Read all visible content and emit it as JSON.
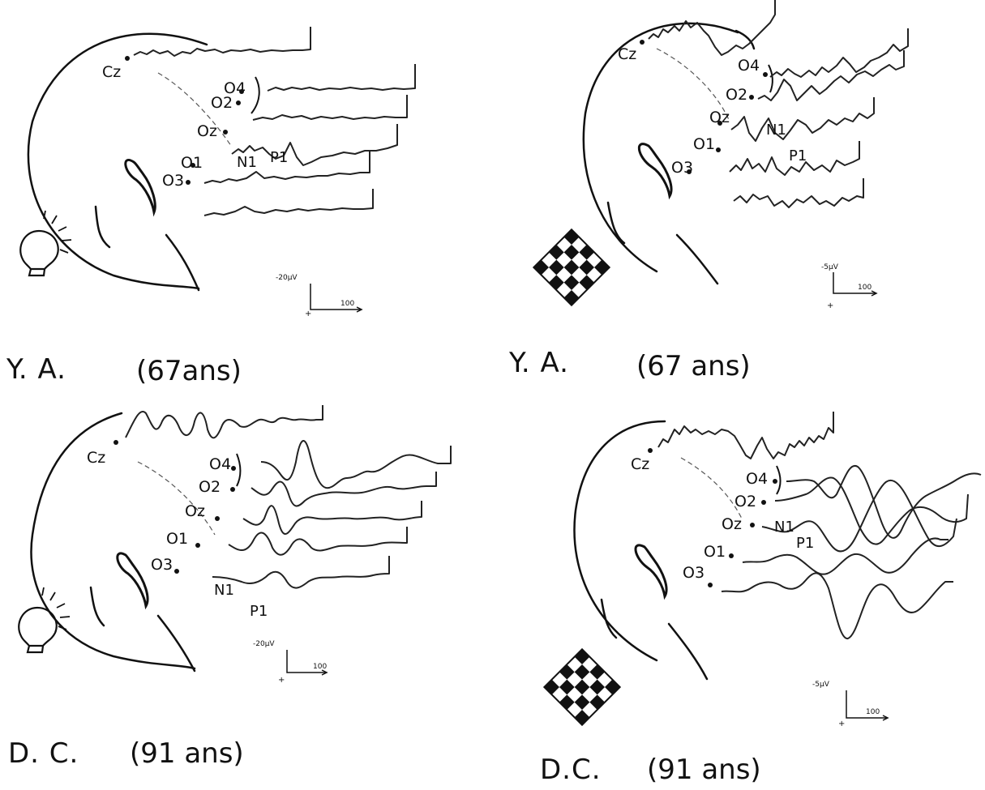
{
  "panels": [
    {
      "id": "tl",
      "stimulus": "flash-bulb",
      "subject": "Y. A.",
      "age": "(67ans)",
      "electrodes": [
        "Cz",
        "O4",
        "O2",
        "Oz",
        "O1",
        "O3"
      ],
      "waves": [
        "N1",
        "P1"
      ],
      "scale": {
        "amp": "-20µV",
        "time": "100"
      }
    },
    {
      "id": "tr",
      "stimulus": "checkerboard",
      "subject": "Y. A.",
      "age": "(67 ans)",
      "electrodes": [
        "Cz",
        "O4",
        "O2",
        "Oz",
        "O1",
        "O3"
      ],
      "waves": [
        "N1",
        "P1"
      ],
      "scale": {
        "amp": "-5µV",
        "time": "100"
      }
    },
    {
      "id": "bl",
      "stimulus": "flash-bulb",
      "subject": "D. C.",
      "age": "(91 ans)",
      "electrodes": [
        "Cz",
        "O4",
        "O2",
        "Oz",
        "O1",
        "O3"
      ],
      "waves": [
        "N1",
        "P1"
      ],
      "scale": {
        "amp": "-20µV",
        "time": "100"
      }
    },
    {
      "id": "br",
      "stimulus": "checkerboard",
      "subject": "D.C.",
      "age": "(91 ans)",
      "electrodes": [
        "Cz",
        "O4",
        "O2",
        "Oz",
        "O1",
        "O3"
      ],
      "waves": [
        "N1",
        "P1"
      ],
      "scale": {
        "amp": "-5µV",
        "time": "100"
      }
    }
  ]
}
